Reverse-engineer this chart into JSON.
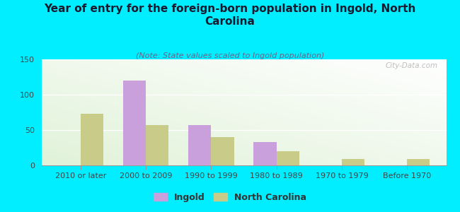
{
  "title": "Year of entry for the foreign-born population in Ingold, North\nCarolina",
  "subtitle": "(Note: State values scaled to Ingold population)",
  "categories": [
    "2010 or later",
    "2000 to 2009",
    "1990 to 1999",
    "1980 to 1989",
    "1970 to 1979",
    "Before 1970"
  ],
  "ingold_values": [
    0,
    120,
    57,
    33,
    0,
    0
  ],
  "nc_values": [
    73,
    57,
    40,
    20,
    9,
    9
  ],
  "ingold_color": "#c9a0dc",
  "nc_color": "#c8cc88",
  "bg_color": "#00eeff",
  "ylim": [
    0,
    150
  ],
  "yticks": [
    0,
    50,
    100,
    150
  ],
  "bar_width": 0.35,
  "title_fontsize": 11,
  "subtitle_fontsize": 8,
  "tick_fontsize": 8,
  "legend_fontsize": 9,
  "watermark": "City-Data.com"
}
